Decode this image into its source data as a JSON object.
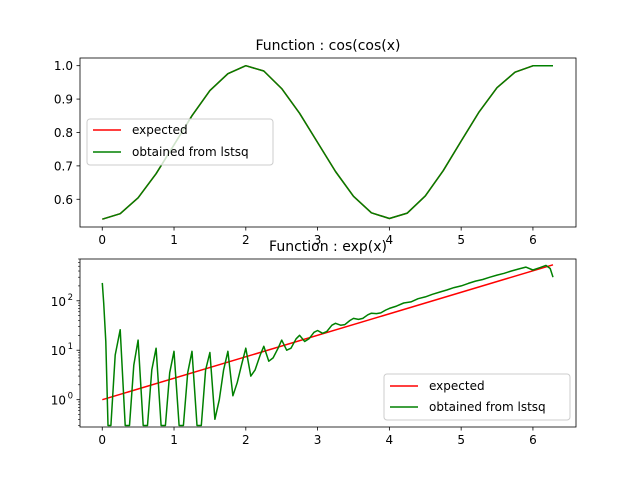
{
  "chart_data": [
    {
      "type": "line",
      "title": "Function : cos(cos(x)",
      "xlabel": "",
      "ylabel": "",
      "xlim": [
        -0.31,
        6.6
      ],
      "ylim": [
        0.517,
        1.023
      ],
      "yscale": "linear",
      "grid": false,
      "legend_position": "center-left",
      "x_ticks": [
        0,
        1,
        2,
        3,
        4,
        5,
        6
      ],
      "y_ticks": [
        0.6,
        0.7,
        0.8,
        0.9,
        1.0
      ],
      "y_tick_labels": [
        "0.6",
        "0.7",
        "0.8",
        "0.9",
        "1.0"
      ],
      "series": [
        {
          "name": "expected",
          "color": "#ff0000",
          "x": [
            0,
            0.25,
            0.5,
            0.75,
            1.0,
            1.25,
            1.5,
            1.75,
            2.0,
            2.25,
            2.5,
            2.75,
            3.0,
            3.25,
            3.5,
            3.75,
            4.0,
            4.25,
            4.5,
            4.75,
            5.0,
            5.25,
            5.5,
            5.75,
            6.0,
            6.28
          ],
          "values": [
            0.5403,
            0.5568,
            0.6043,
            0.6766,
            0.7628,
            0.8502,
            0.9253,
            0.9761,
            0.9998,
            0.9842,
            0.9314,
            0.8575,
            0.77,
            0.6831,
            0.6089,
            0.5594,
            0.5424,
            0.5585,
            0.6101,
            0.6857,
            0.7746,
            0.8616,
            0.934,
            0.9804,
            0.9996,
            0.9998
          ]
        },
        {
          "name": "obtained from lstsq",
          "color": "#008000",
          "x": [
            0,
            0.25,
            0.5,
            0.75,
            1.0,
            1.25,
            1.5,
            1.75,
            2.0,
            2.25,
            2.5,
            2.75,
            3.0,
            3.25,
            3.5,
            3.75,
            4.0,
            4.25,
            4.5,
            4.75,
            5.0,
            5.25,
            5.5,
            5.75,
            6.0,
            6.28
          ],
          "values": [
            0.5403,
            0.5568,
            0.6043,
            0.6766,
            0.7628,
            0.8502,
            0.9253,
            0.9761,
            0.9998,
            0.9842,
            0.9314,
            0.8575,
            0.77,
            0.6831,
            0.6089,
            0.5594,
            0.5424,
            0.5585,
            0.6101,
            0.6857,
            0.7746,
            0.8616,
            0.934,
            0.9804,
            0.9996,
            0.9998
          ]
        }
      ]
    },
    {
      "type": "line",
      "title": "Function : exp(x)",
      "xlabel": "",
      "ylabel": "",
      "xlim": [
        -0.31,
        6.6
      ],
      "ylim": [
        0.28,
        700
      ],
      "yscale": "log",
      "grid": false,
      "legend_position": "lower-right",
      "x_ticks": [
        0,
        1,
        2,
        3,
        4,
        5,
        6
      ],
      "y_ticks": [
        1,
        10,
        100
      ],
      "y_tick_bases": [
        "10",
        "10",
        "10"
      ],
      "y_tick_exponents": [
        "0",
        "1",
        "2"
      ],
      "series": [
        {
          "name": "expected",
          "color": "#ff0000",
          "x": [
            0,
            6.28
          ],
          "values": [
            1.0,
            533.5
          ]
        },
        {
          "name": "obtained from lstsq",
          "color": "#008000",
          "x": [
            0,
            0.02,
            0.05,
            0.08,
            0.12,
            0.18,
            0.25,
            0.32,
            0.38,
            0.44,
            0.5,
            0.57,
            0.63,
            0.69,
            0.75,
            0.82,
            0.88,
            0.94,
            1.0,
            1.07,
            1.13,
            1.19,
            1.25,
            1.32,
            1.38,
            1.44,
            1.5,
            1.57,
            1.63,
            1.69,
            1.75,
            1.82,
            1.88,
            1.94,
            2.0,
            2.07,
            2.13,
            2.2,
            2.25,
            2.32,
            2.38,
            2.45,
            2.5,
            2.57,
            2.63,
            2.7,
            2.75,
            2.82,
            2.88,
            2.95,
            3.0,
            3.07,
            3.13,
            3.2,
            3.25,
            3.32,
            3.38,
            3.45,
            3.5,
            3.57,
            3.63,
            3.7,
            3.75,
            3.82,
            3.88,
            3.95,
            4.0,
            4.1,
            4.2,
            4.3,
            4.4,
            4.5,
            4.6,
            4.7,
            4.8,
            4.9,
            5.0,
            5.1,
            5.2,
            5.3,
            5.4,
            5.5,
            5.6,
            5.7,
            5.8,
            5.9,
            6.0,
            6.1,
            6.18,
            6.24,
            6.28
          ],
          "values": [
            230,
            90,
            15,
            0.3,
            0.3,
            8,
            26,
            0.3,
            0.3,
            5,
            16,
            0.3,
            0.3,
            4,
            11,
            0.3,
            0.3,
            3.5,
            9.5,
            0.3,
            0.3,
            3.5,
            9.5,
            0.3,
            0.3,
            4,
            9,
            0.4,
            1.0,
            4,
            9.5,
            1.2,
            2.2,
            5,
            11,
            3.0,
            4.0,
            8,
            12,
            6,
            7,
            11,
            16,
            10,
            11,
            17,
            20,
            15,
            17,
            23,
            25,
            22,
            24,
            32,
            35,
            32,
            33,
            40,
            44,
            42,
            44,
            52,
            56,
            55,
            57,
            65,
            70,
            78,
            90,
            95,
            110,
            120,
            135,
            150,
            165,
            185,
            200,
            225,
            250,
            270,
            300,
            330,
            360,
            400,
            440,
            480,
            420,
            470,
            520,
            450,
            300
          ]
        }
      ]
    }
  ]
}
